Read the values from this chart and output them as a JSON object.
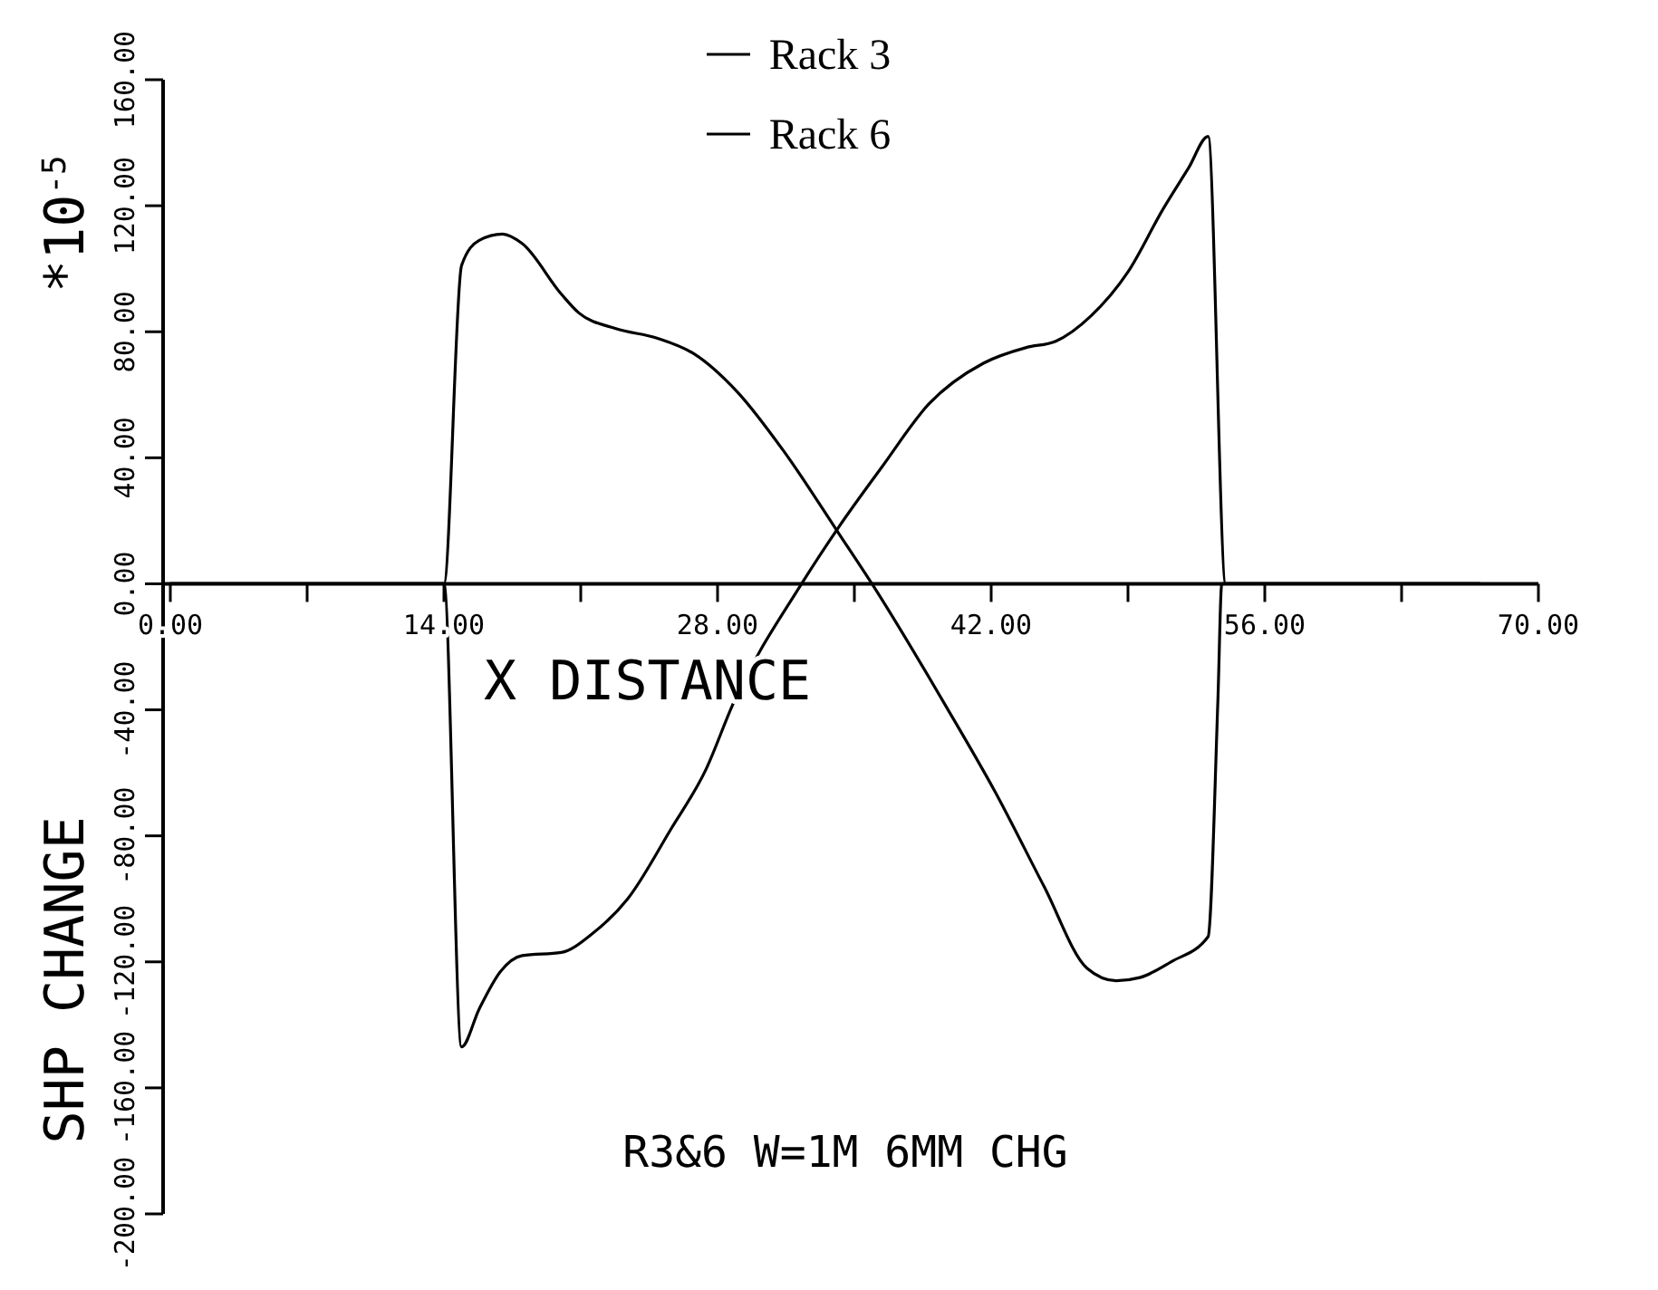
{
  "chart_data": {
    "type": "line",
    "title": "R3&6 W=1M 6MM CHG",
    "xlabel": "X DISTANCE",
    "ylabel": "SHP CHANGE",
    "annotations": [
      "*10$^{-5}$"
    ],
    "xlim": [
      0,
      70
    ],
    "ylim": [
      -200,
      160
    ],
    "xticks": [
      {
        "value": 0,
        "label": "0.00"
      },
      {
        "value": 7,
        "label": null
      },
      {
        "value": 14,
        "label": "14.00"
      },
      {
        "value": 21,
        "label": null
      },
      {
        "value": 28,
        "label": "28.00"
      },
      {
        "value": 35,
        "label": null
      },
      {
        "value": 42,
        "label": "42.00"
      },
      {
        "value": 49,
        "label": null
      },
      {
        "value": 56,
        "label": "56.00"
      },
      {
        "value": 63,
        "label": null
      },
      {
        "value": 70,
        "label": "70.00"
      }
    ],
    "yticks": [
      {
        "value": -200,
        "label": "-200.00"
      },
      {
        "value": -160,
        "label": "-160.00"
      },
      {
        "value": -120,
        "label": "-120.00"
      },
      {
        "value": -80,
        "label": "-80.00"
      },
      {
        "value": -40,
        "label": "-40.00"
      },
      {
        "value": 0,
        "label": "0.00"
      },
      {
        "value": 40,
        "label": "40.00"
      },
      {
        "value": 80,
        "label": "80.00"
      },
      {
        "value": 120,
        "label": "120.00"
      },
      {
        "value": 160,
        "label": "160.00"
      }
    ],
    "legend": "top",
    "line_style": "solid",
    "marker": "none",
    "grid": false,
    "series": [
      {
        "name": "Rack 3",
        "color": "#000000",
        "x": [
          0,
          14,
          14.9,
          15.8,
          17,
          18,
          20,
          20.9,
          22.8,
          24.9,
          26.8,
          29,
          31.4,
          34.2,
          35.9,
          39.7,
          42.2,
          44.7,
          46.9,
          48.4,
          49.6,
          51.2,
          53.1,
          53.6,
          53.8,
          67
        ],
        "values": [
          0,
          0,
          101,
          109,
          111,
          108,
          92,
          86,
          81,
          78,
          73,
          61,
          42,
          16,
          0,
          -39,
          -66,
          -96,
          -122,
          -126,
          -125,
          -120,
          -112,
          -37,
          0,
          0
        ]
      },
      {
        "name": "Rack 6",
        "color": "#000000",
        "x": [
          0,
          14,
          14.9,
          15.8,
          16.9,
          18,
          20,
          21.6,
          23.4,
          25.6,
          27.4,
          28.8,
          32.3,
          34.2,
          36.4,
          38.8,
          41.6,
          43.8,
          45.3,
          47.1,
          49,
          50.8,
          52.1,
          53.1,
          54,
          67
        ],
        "values": [
          0,
          0,
          -147,
          -135,
          -123,
          -118,
          -117,
          -111,
          -100,
          -78,
          -59,
          -38,
          0,
          18,
          37,
          57,
          70,
          75,
          77,
          85,
          99,
          119,
          132,
          142,
          0,
          0
        ]
      }
    ]
  }
}
